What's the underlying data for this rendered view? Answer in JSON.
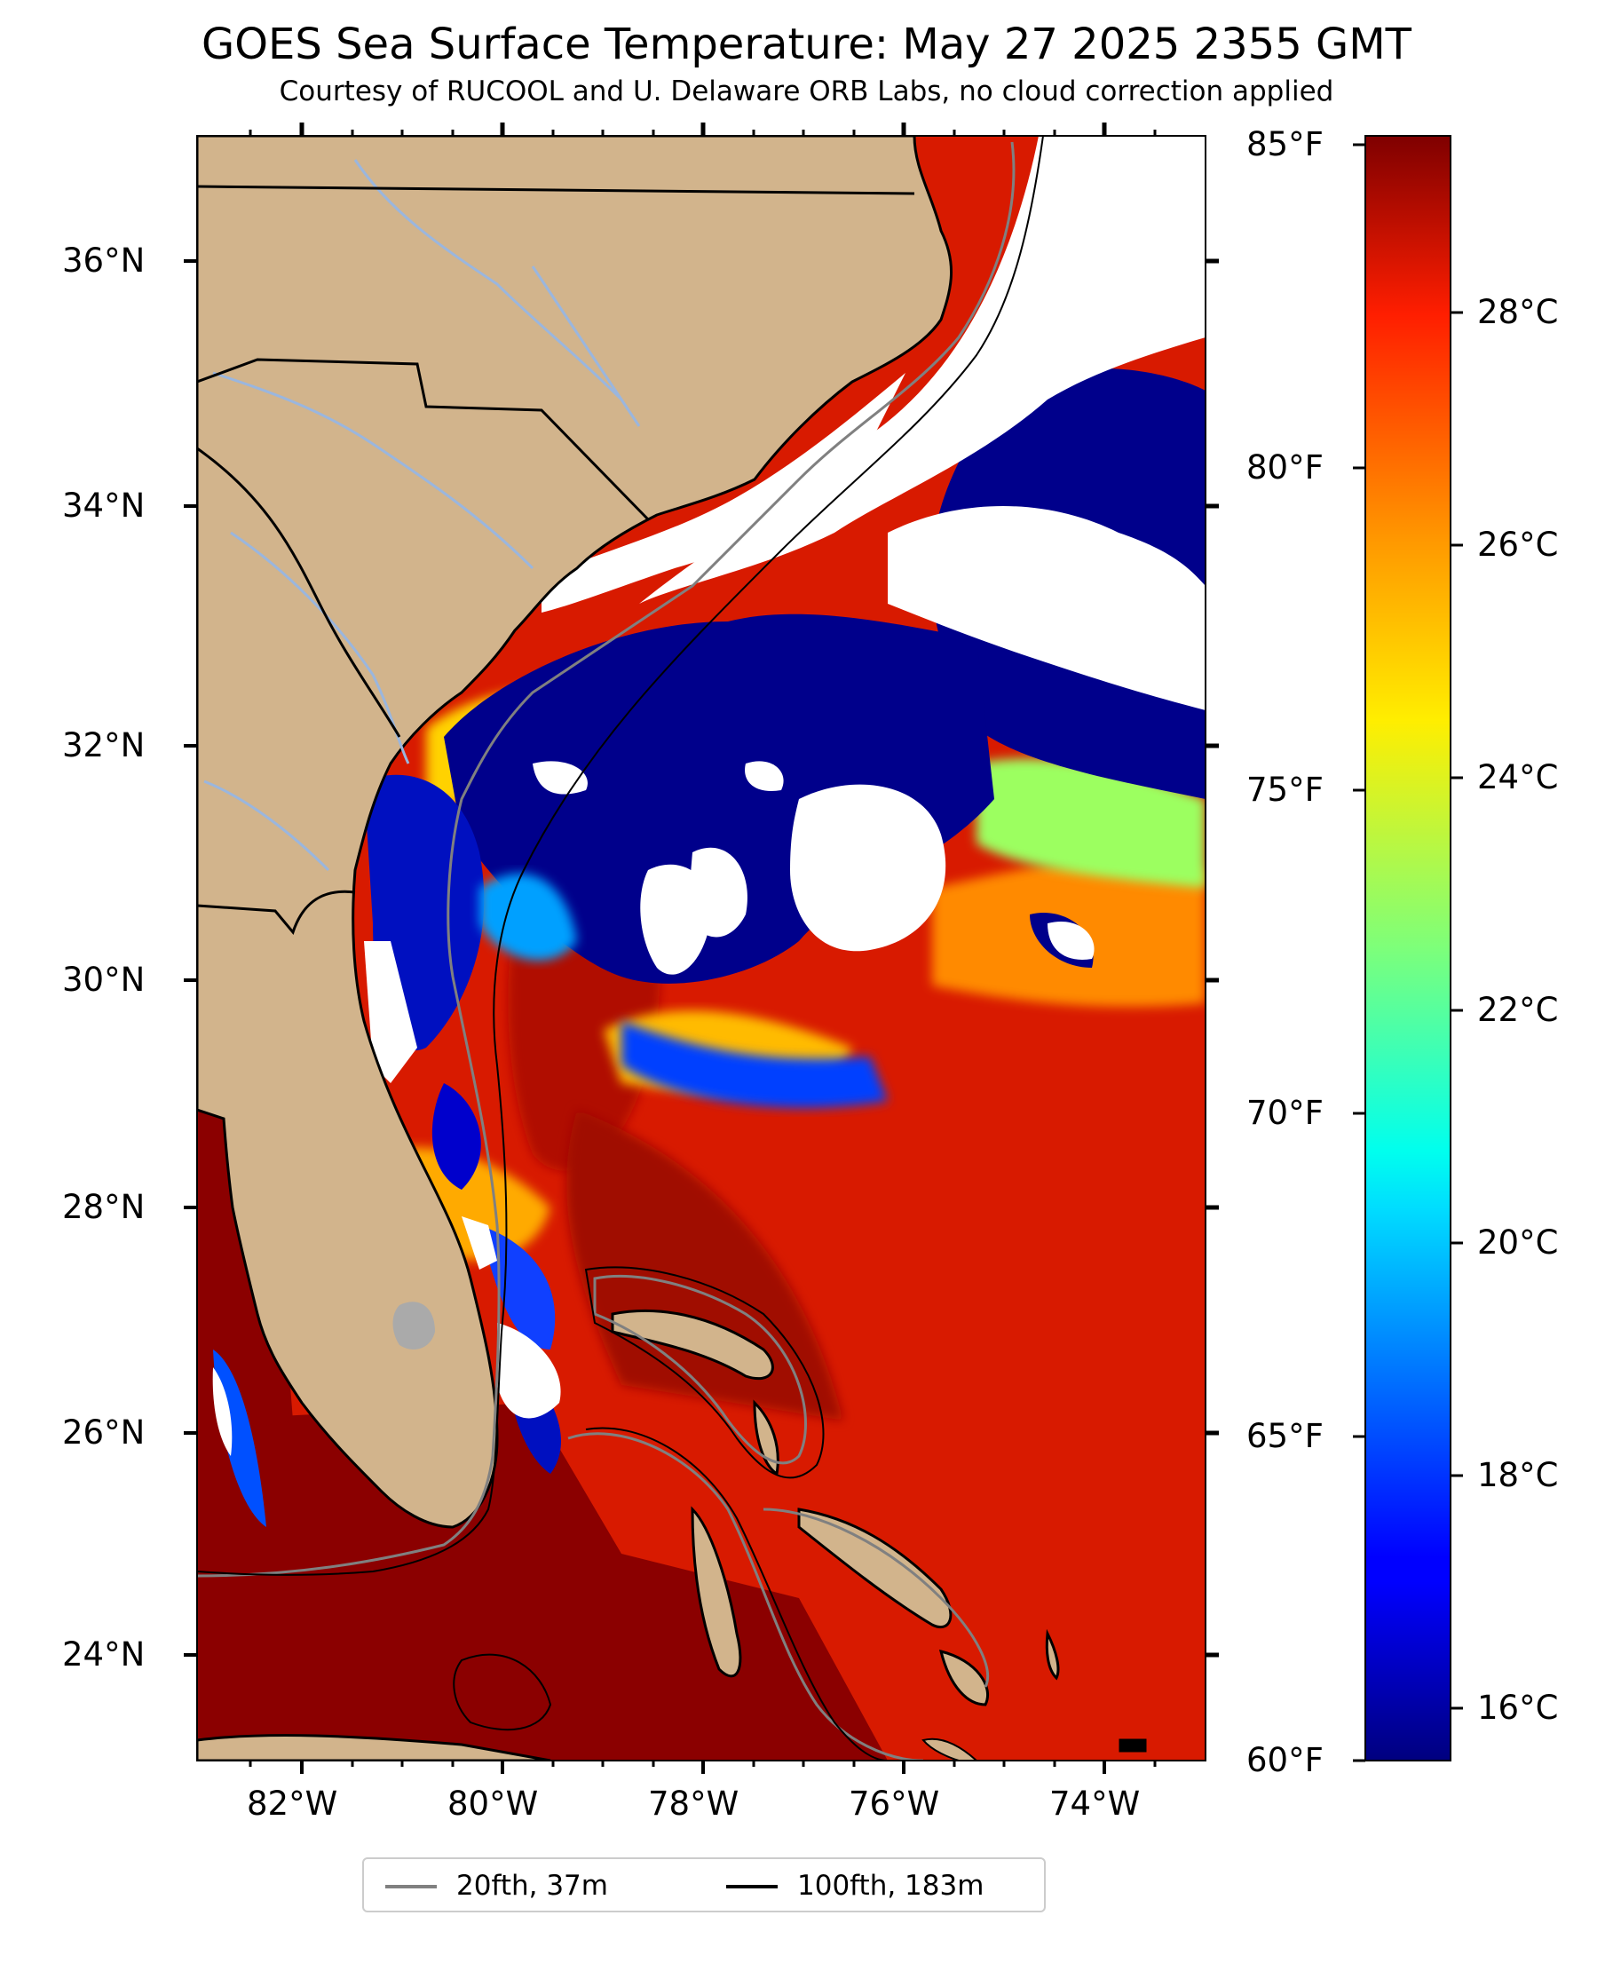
{
  "title": "GOES Sea Surface Temperature: May 27 2025 2355 GMT",
  "subtitle": "Courtesy of RUCOOL and U. Delaware ORB Labs, no cloud correction applied",
  "map": {
    "lat_ticks": [
      {
        "value": 36,
        "label": "36°N"
      },
      {
        "value": 34,
        "label": "34°N"
      },
      {
        "value": 32,
        "label": "32°N"
      },
      {
        "value": 30,
        "label": "30°N"
      },
      {
        "value": 28,
        "label": "28°N"
      },
      {
        "value": 26,
        "label": "26°N"
      },
      {
        "value": 24,
        "label": "24°N"
      }
    ],
    "lon_ticks": [
      {
        "value": -82,
        "label": "82°W"
      },
      {
        "value": -80,
        "label": "80°W"
      },
      {
        "value": -78,
        "label": "78°W"
      },
      {
        "value": -76,
        "label": "76°W"
      },
      {
        "value": -74,
        "label": "74°W"
      }
    ],
    "colors": {
      "land": "#d2b48c",
      "cloud": "#ffffff",
      "warm_water": "#cc1100",
      "hot_water": "#8b0000",
      "cold_water": "#00008b",
      "isobath_20": "#808080",
      "isobath_100": "#000000",
      "river": "#9ab6de"
    }
  },
  "colorbar": {
    "colormap": "jet",
    "fahrenheit_ticks": [
      "85°F",
      "80°F",
      "75°F",
      "70°F",
      "65°F",
      "60°F"
    ],
    "celsius_ticks": [
      "28°C",
      "26°C",
      "24°C",
      "22°C",
      "20°C",
      "18°C",
      "16°C"
    ]
  },
  "legend": {
    "items": [
      {
        "label": "20fth, 37m",
        "color": "#808080"
      },
      {
        "label": "100fth, 183m",
        "color": "#000000"
      }
    ]
  }
}
